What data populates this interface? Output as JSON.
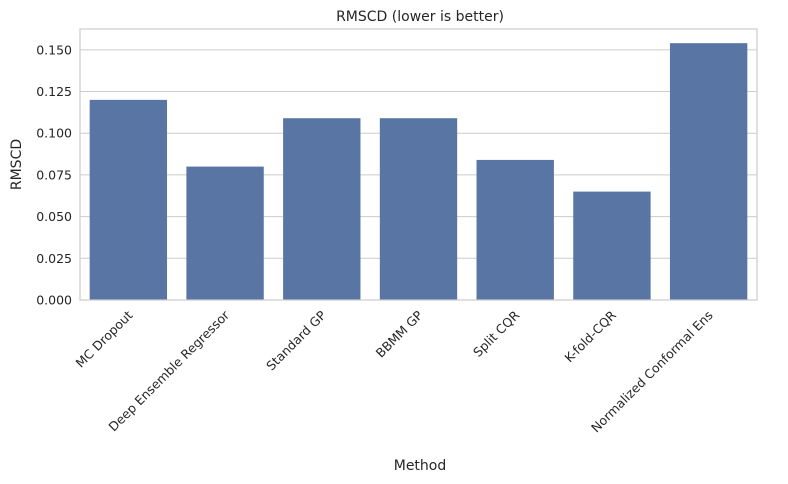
{
  "chart_data": {
    "type": "bar",
    "title": "RMSCD (lower is better)",
    "xlabel": "Method",
    "ylabel": "RMSCD",
    "categories": [
      "MC Dropout",
      "Deep Ensemble Regressor",
      "Standard GP",
      "BBMM GP",
      "Split CQR",
      "K-fold-CQR",
      "Normalized Conformal Ens"
    ],
    "values": [
      0.12,
      0.08,
      0.109,
      0.109,
      0.084,
      0.065,
      0.154
    ],
    "ylim": [
      0,
      0.1625
    ],
    "yticks": [
      0.0,
      0.025,
      0.05,
      0.075,
      0.1,
      0.125,
      0.15
    ],
    "ytick_labels": [
      "0.000",
      "0.025",
      "0.050",
      "0.075",
      "0.100",
      "0.125",
      "0.150"
    ],
    "grid": "horizontal",
    "bar_color": "#5875a4",
    "grid_color": "#cccccc"
  }
}
